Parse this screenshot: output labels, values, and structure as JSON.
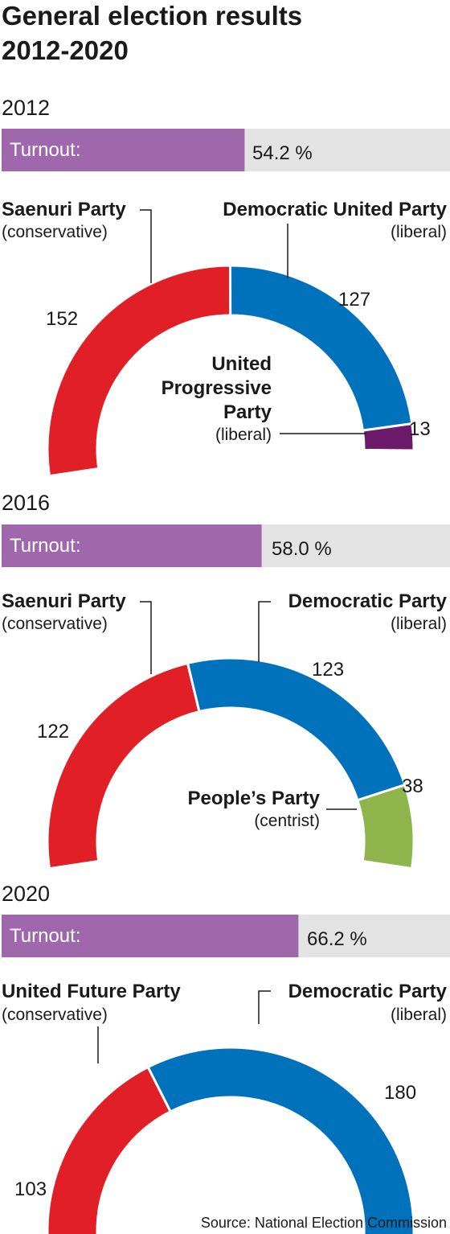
{
  "colors": {
    "turnout_fill": "#9f68ac",
    "turnout_track": "#e3e3e3",
    "conservative": "#e01f27",
    "liberal": "#0072bc",
    "progressive": "#6e1a6b",
    "centrist": "#8db54b"
  },
  "title_line1": "General election results",
  "title_line2": "2012-2020",
  "source": "Source: National Election Commission",
  "chart_data": [
    {
      "type": "pie",
      "year": "2012",
      "turnout_label": "Turnout:",
      "turnout_value": "54.2 %",
      "turnout": 54.2,
      "series": [
        {
          "name": "Saenuri Party",
          "leaning": "(conservative)",
          "value": 152,
          "label": "152",
          "color": "#e01f27"
        },
        {
          "name": "Democratic United Party",
          "leaning": "(liberal)",
          "value": 127,
          "label": "127",
          "color": "#0072bc"
        },
        {
          "name_lines": [
            "United",
            "Progressive",
            "Party"
          ],
          "leaning": "(liberal)",
          "value": 13,
          "label": "13",
          "color": "#6e1a6b"
        }
      ]
    },
    {
      "type": "pie",
      "year": "2016",
      "turnout_label": "Turnout:",
      "turnout_value": "58.0 %",
      "turnout": 58.0,
      "series": [
        {
          "name": "Saenuri Party",
          "leaning": "(conservative)",
          "value": 122,
          "label": "122",
          "color": "#e01f27"
        },
        {
          "name": "Democratic Party",
          "leaning": "(liberal)",
          "value": 123,
          "label": "123",
          "color": "#0072bc"
        },
        {
          "name": "People’s Party",
          "leaning": "(centrist)",
          "value": 38,
          "label": "38",
          "color": "#8db54b"
        }
      ]
    },
    {
      "type": "pie",
      "year": "2020",
      "turnout_label": "Turnout:",
      "turnout_value": "66.2 %",
      "turnout": 66.2,
      "series": [
        {
          "name": "United Future Party",
          "leaning": "(conservative)",
          "value": 103,
          "label": "103",
          "color": "#e01f27"
        },
        {
          "name": "Democratic Party",
          "leaning": "(liberal)",
          "value": 180,
          "label": "180",
          "color": "#0072bc"
        }
      ]
    }
  ]
}
